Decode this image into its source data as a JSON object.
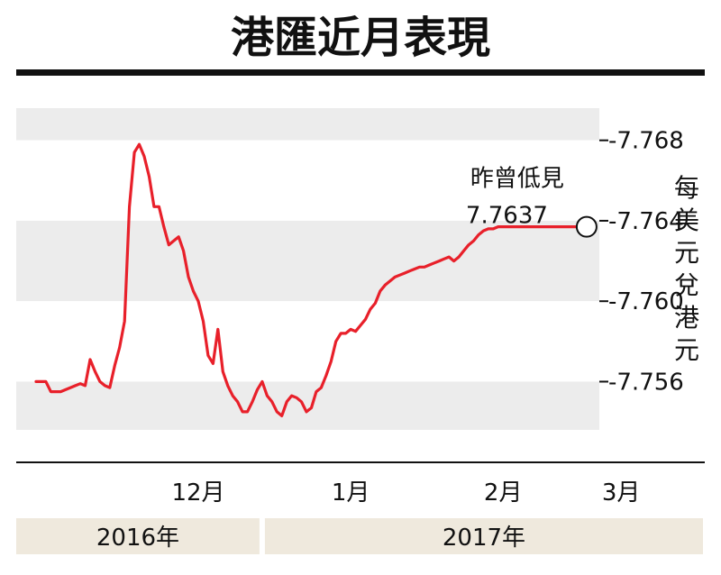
{
  "chart_data": {
    "type": "line",
    "title": "港匯近月表現",
    "ylabel": "每美元兌港元",
    "ylim": [
      7.7536,
      7.7696
    ],
    "y_axis_inverted": true,
    "yticks": [
      "7.768",
      "7.764",
      "7.760",
      "7.756"
    ],
    "grid": "alternating horizontal bands",
    "xticks": [
      {
        "label": "12月",
        "x": 33
      },
      {
        "label": "1月",
        "x": 64
      },
      {
        "label": "2月",
        "x": 95
      },
      {
        "label": "3月",
        "x": 119
      }
    ],
    "year_labels": [
      {
        "label": "2016年",
        "from": 0,
        "to": 46
      },
      {
        "label": "2017年",
        "from": 46,
        "to": 132
      }
    ],
    "series": [
      {
        "color": "#e8202a",
        "x": [
          0,
          1,
          2,
          3,
          4,
          5,
          6,
          7,
          8,
          9,
          10,
          11,
          12,
          13,
          14,
          15,
          16,
          17,
          18,
          19,
          20,
          21,
          22,
          23,
          24,
          25,
          26,
          27,
          28,
          29,
          30,
          31,
          32,
          33,
          34,
          35,
          36,
          37,
          38,
          39,
          40,
          41,
          42,
          43,
          44,
          45,
          46,
          47,
          48,
          49,
          50,
          51,
          52,
          53,
          54,
          55,
          56,
          57,
          58,
          59,
          60,
          61,
          62,
          63,
          64,
          65,
          66,
          67,
          68,
          69,
          70,
          71,
          72,
          73,
          74,
          75,
          76,
          77,
          78,
          79,
          80,
          81,
          82,
          83,
          84,
          85,
          86,
          87,
          88,
          89,
          90,
          91,
          92,
          93,
          94,
          95,
          96,
          97,
          98,
          99,
          100,
          101,
          102,
          103,
          104,
          105,
          106,
          107,
          108,
          109,
          110,
          111,
          112
        ],
        "values": [
          7.756,
          7.756,
          7.756,
          7.7555,
          7.7555,
          7.7555,
          7.7556,
          7.7557,
          7.7558,
          7.7559,
          7.7558,
          7.7571,
          7.7565,
          7.756,
          7.7558,
          7.7557,
          7.7568,
          7.7577,
          7.759,
          7.7647,
          7.7674,
          7.7678,
          7.7672,
          7.7662,
          7.7647,
          7.7647,
          7.7637,
          7.7628,
          7.763,
          7.7632,
          7.7625,
          7.7612,
          7.7605,
          7.76,
          7.759,
          7.7573,
          7.7569,
          7.7586,
          7.7565,
          7.7558,
          7.7553,
          7.755,
          7.7545,
          7.7545,
          7.755,
          7.7556,
          7.756,
          7.7553,
          7.755,
          7.7545,
          7.7543,
          7.755,
          7.7553,
          7.7552,
          7.755,
          7.7545,
          7.7547,
          7.7555,
          7.7557,
          7.7563,
          7.757,
          7.758,
          7.7584,
          7.7584,
          7.7586,
          7.7585,
          7.7588,
          7.7591,
          7.7596,
          7.7599,
          7.7605,
          7.7608,
          7.761,
          7.7612,
          7.7613,
          7.7614,
          7.7615,
          7.7616,
          7.7617,
          7.7617,
          7.7618,
          7.7619,
          7.762,
          7.7621,
          7.7622,
          7.762,
          7.7622,
          7.7625,
          7.7628,
          7.763,
          7.7633,
          7.7635,
          7.7636,
          7.7636,
          7.7637,
          7.7637,
          7.7637,
          7.7637,
          7.7637,
          7.7637,
          7.7637,
          7.7637,
          7.7637,
          7.7637,
          7.7637,
          7.7637,
          7.7637,
          7.7637,
          7.7637,
          7.7637,
          7.7637,
          7.7637,
          7.7637
        ]
      }
    ],
    "annotation": {
      "label": "昨曾低見",
      "value_label": "7.7637",
      "x": 112,
      "y": 7.7637
    }
  }
}
